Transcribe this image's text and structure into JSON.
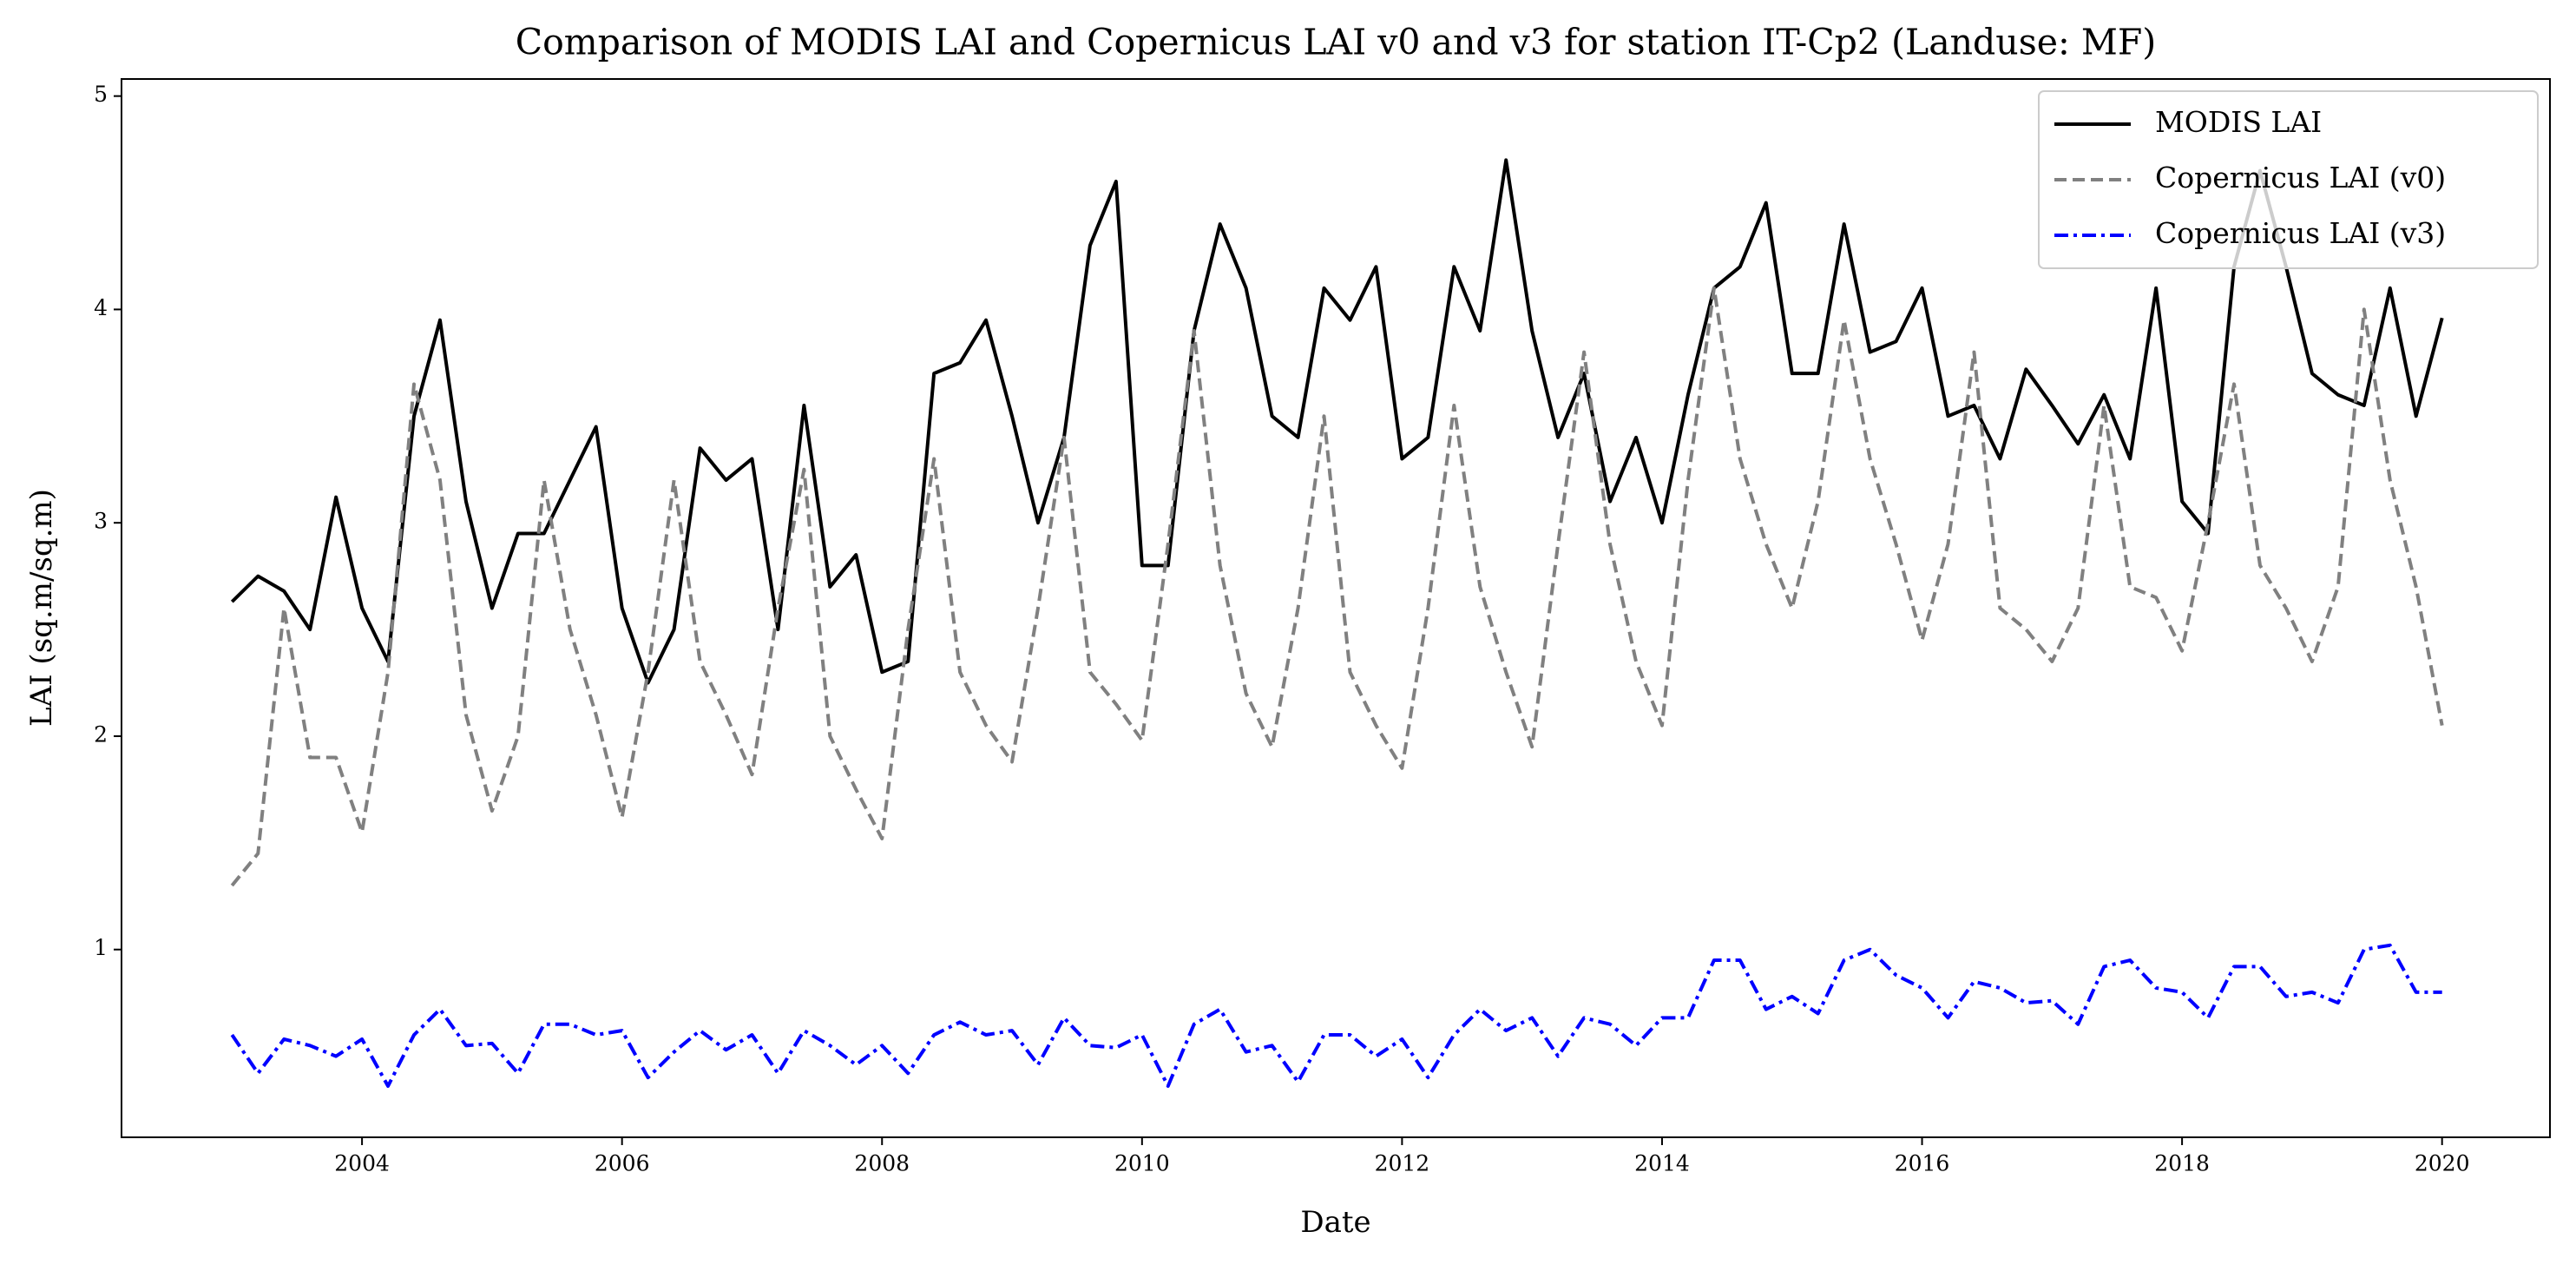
{
  "chart_data": {
    "type": "line",
    "title": "Comparison of MODIS LAI and Copernicus LAI v0 and v3 for station IT-Cp2 (Landuse: MF)",
    "x_label": "Date",
    "y_label": "LAI (sq.m/sq.m)",
    "x": [
      2003.0,
      2003.2,
      2003.4,
      2003.6,
      2003.8,
      2004.0,
      2004.2,
      2004.4,
      2004.6,
      2004.8,
      2005.0,
      2005.2,
      2005.4,
      2005.6,
      2005.8,
      2006.0,
      2006.2,
      2006.4,
      2006.6,
      2006.8,
      2007.0,
      2007.2,
      2007.4,
      2007.6,
      2007.8,
      2008.0,
      2008.2,
      2008.4,
      2008.6,
      2008.8,
      2009.0,
      2009.2,
      2009.4,
      2009.6,
      2009.8,
      2010.0,
      2010.2,
      2010.4,
      2010.6,
      2010.8,
      2011.0,
      2011.2,
      2011.4,
      2011.6,
      2011.8,
      2012.0,
      2012.2,
      2012.4,
      2012.6,
      2012.8,
      2013.0,
      2013.2,
      2013.4,
      2013.6,
      2013.8,
      2014.0,
      2014.2,
      2014.4,
      2014.6,
      2014.8,
      2015.0,
      2015.2,
      2015.4,
      2015.6,
      2015.8,
      2016.0,
      2016.2,
      2016.4,
      2016.6,
      2016.8,
      2017.0,
      2017.2,
      2017.4,
      2017.6,
      2017.8,
      2018.0,
      2018.2,
      2018.4,
      2018.6,
      2018.8,
      2019.0,
      2019.2,
      2019.4,
      2019.6,
      2019.8,
      2020.0
    ],
    "series": [
      {
        "name": "MODIS LAI",
        "color": "#000000",
        "linestyle": "solid",
        "values": [
          2.63,
          2.75,
          2.68,
          2.5,
          3.12,
          2.6,
          2.35,
          3.5,
          3.95,
          3.1,
          2.6,
          2.95,
          2.95,
          3.2,
          3.45,
          2.6,
          2.25,
          2.5,
          3.35,
          3.2,
          3.3,
          2.5,
          3.55,
          2.7,
          2.85,
          2.3,
          2.35,
          3.7,
          3.75,
          3.95,
          3.5,
          3.0,
          3.4,
          4.3,
          4.6,
          2.8,
          2.8,
          3.9,
          4.4,
          4.1,
          3.5,
          3.4,
          4.1,
          3.95,
          4.2,
          3.3,
          3.4,
          4.2,
          3.9,
          4.7,
          3.9,
          3.4,
          3.7,
          3.1,
          3.4,
          3.0,
          3.6,
          4.1,
          4.2,
          4.5,
          3.7,
          3.7,
          4.4,
          3.8,
          3.85,
          4.1,
          3.5,
          3.55,
          3.3,
          3.72,
          3.55,
          3.37,
          3.6,
          3.3,
          4.1,
          3.1,
          2.95,
          4.2,
          4.65,
          4.2,
          3.7,
          3.6,
          3.55,
          4.1,
          3.5,
          3.96
        ]
      },
      {
        "name": "Copernicus LAI (v0)",
        "color": "#808080",
        "linestyle": "dashed",
        "values": [
          1.3,
          1.45,
          2.6,
          1.9,
          1.9,
          1.55,
          2.3,
          3.65,
          3.2,
          2.1,
          1.65,
          2.0,
          3.2,
          2.5,
          2.1,
          1.62,
          2.3,
          3.2,
          2.35,
          2.1,
          1.82,
          2.6,
          3.25,
          2.0,
          1.75,
          1.52,
          2.5,
          3.3,
          2.3,
          2.05,
          1.88,
          2.6,
          3.4,
          2.3,
          2.15,
          1.98,
          2.9,
          3.9,
          2.8,
          2.2,
          1.95,
          2.6,
          3.5,
          2.3,
          2.05,
          1.85,
          2.6,
          3.55,
          2.7,
          2.3,
          1.95,
          2.9,
          3.8,
          2.9,
          2.35,
          2.05,
          3.2,
          4.1,
          3.3,
          2.9,
          2.6,
          3.1,
          3.95,
          3.3,
          2.9,
          2.45,
          2.9,
          3.8,
          2.6,
          2.5,
          2.35,
          2.6,
          3.55,
          2.7,
          2.65,
          2.4,
          3.0,
          3.65,
          2.8,
          2.6,
          2.35,
          2.7,
          4.0,
          3.2,
          2.7,
          2.05
        ]
      },
      {
        "name": "Copernicus LAI (v3)",
        "color": "#0000ff",
        "linestyle": "dashdot",
        "values": [
          0.6,
          0.42,
          0.58,
          0.55,
          0.5,
          0.58,
          0.36,
          0.6,
          0.72,
          0.55,
          0.56,
          0.42,
          0.65,
          0.65,
          0.6,
          0.62,
          0.4,
          0.52,
          0.62,
          0.53,
          0.6,
          0.42,
          0.62,
          0.55,
          0.46,
          0.55,
          0.42,
          0.6,
          0.66,
          0.6,
          0.62,
          0.46,
          0.68,
          0.55,
          0.54,
          0.6,
          0.36,
          0.65,
          0.72,
          0.52,
          0.55,
          0.38,
          0.6,
          0.6,
          0.5,
          0.58,
          0.4,
          0.6,
          0.72,
          0.62,
          0.68,
          0.5,
          0.68,
          0.65,
          0.55,
          0.68,
          0.68,
          0.95,
          0.95,
          0.72,
          0.78,
          0.7,
          0.95,
          1.0,
          0.88,
          0.82,
          0.68,
          0.85,
          0.82,
          0.75,
          0.76,
          0.65,
          0.92,
          0.95,
          0.82,
          0.8,
          0.68,
          0.92,
          0.92,
          0.78,
          0.8,
          0.75,
          1.0,
          1.02,
          0.8,
          0.8
        ]
      }
    ],
    "xlim": [
      2002.15,
      2020.83
    ],
    "ylim": [
      0.12,
      5.08
    ],
    "xticks": [
      2004,
      2006,
      2008,
      2010,
      2012,
      2014,
      2016,
      2018,
      2020
    ],
    "yticks": [
      1,
      2,
      3,
      4,
      5
    ],
    "grid": false,
    "legend": "upper right"
  }
}
